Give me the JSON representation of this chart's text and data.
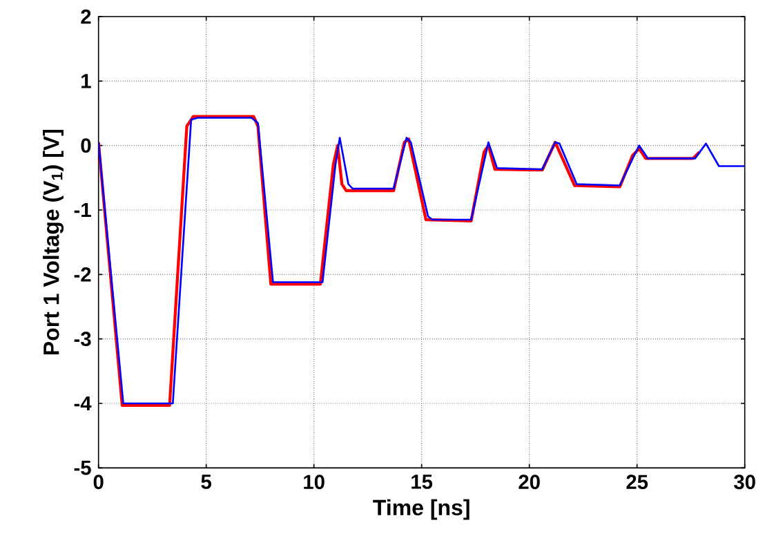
{
  "chart_data": {
    "type": "line",
    "xlabel": "Time [ns]",
    "ylabel": "Port 1 Voltage (V$_{1}$)   [V]",
    "xlim": [
      0,
      30
    ],
    "ylim": [
      -5,
      2
    ],
    "xticks": [
      0,
      5,
      10,
      15,
      20,
      25,
      30
    ],
    "yticks": [
      -5,
      -4,
      -3,
      -2,
      -1,
      0,
      1,
      2
    ],
    "grid": true,
    "line_style": "solid",
    "marker": "none",
    "series": [
      {
        "color": "#ff0000",
        "x": [
          0,
          1.1,
          3.3,
          4.1,
          4.4,
          7.2,
          7.4,
          8.0,
          10.3,
          10.9,
          11.1,
          11.3,
          11.5,
          13.7,
          14.2,
          14.4,
          15.2,
          17.3,
          17.9,
          18.1,
          18.4,
          20.6,
          21.2,
          22.1,
          24.2,
          24.8,
          25.1,
          25.4,
          27.6,
          27.9
        ],
        "values": [
          0.05,
          -4.03,
          -4.03,
          0.3,
          0.45,
          0.45,
          0.3,
          -2.15,
          -2.15,
          -0.3,
          0.0,
          -0.6,
          -0.7,
          -0.7,
          0.05,
          0.1,
          -1.15,
          -1.17,
          -0.1,
          0.0,
          -0.37,
          -0.38,
          0.05,
          -0.62,
          -0.64,
          -0.15,
          -0.05,
          -0.2,
          -0.2,
          -0.1
        ]
      },
      {
        "color": "#0000ff",
        "x": [
          0,
          1.15,
          3.45,
          4.3,
          4.6,
          7.1,
          7.4,
          8.1,
          10.4,
          11.0,
          11.2,
          11.6,
          11.8,
          13.7,
          14.3,
          14.5,
          15.3,
          15.5,
          17.3,
          18.0,
          18.1,
          18.5,
          20.6,
          21.2,
          21.4,
          22.2,
          24.2,
          24.8,
          25.1,
          25.5,
          27.7,
          28.2,
          28.8,
          30
        ],
        "values": [
          0.05,
          -4.0,
          -4.0,
          0.4,
          0.43,
          0.43,
          0.35,
          -2.12,
          -2.12,
          -0.3,
          0.12,
          -0.6,
          -0.67,
          -0.67,
          0.12,
          0.05,
          -1.1,
          -1.15,
          -1.15,
          -0.1,
          0.05,
          -0.35,
          -0.37,
          0.05,
          0.03,
          -0.6,
          -0.62,
          -0.2,
          0.0,
          -0.2,
          -0.2,
          0.03,
          -0.32,
          -0.32
        ]
      }
    ]
  }
}
